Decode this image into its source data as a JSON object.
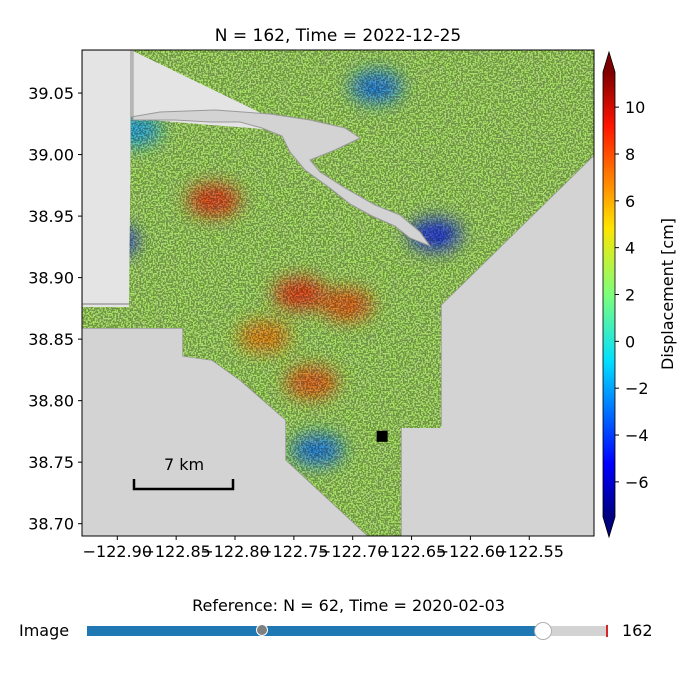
{
  "chart_data": {
    "type": "heatmap",
    "title": "N = 162, Time = 2022-12-25",
    "xlim": [
      -122.93,
      -122.495
    ],
    "ylim": [
      38.69,
      39.085
    ],
    "xticks": [
      -122.9,
      -122.85,
      -122.8,
      -122.75,
      -122.7,
      -122.65,
      -122.6,
      -122.55
    ],
    "xtick_labels": [
      "−122.90",
      "−122.85",
      "−122.80",
      "−122.75",
      "−122.70",
      "−122.65",
      "−122.60",
      "−122.55"
    ],
    "yticks": [
      38.7,
      38.75,
      38.8,
      38.85,
      38.9,
      38.95,
      39.0,
      39.05
    ],
    "ytick_labels": [
      "38.70",
      "38.75",
      "38.80",
      "38.85",
      "38.90",
      "38.95",
      "39.00",
      "39.05"
    ],
    "colorbar": {
      "label": "Displacement [cm]",
      "vmin": -7.5,
      "vmax": 11.5,
      "ticks": [
        10,
        8,
        6,
        4,
        2,
        0,
        -2,
        -4,
        -6
      ],
      "tick_labels": [
        "10",
        "8",
        "6",
        "4",
        "2",
        "0",
        "−2",
        "−4",
        "−6"
      ],
      "colormap": "jet",
      "extend": "both"
    },
    "scalebar": {
      "label": "7 km"
    },
    "marker": {
      "lon": -122.675,
      "lat": 38.771,
      "shape": "square",
      "color": "#000000"
    },
    "hotspots": [
      {
        "lon": -122.818,
        "lat": 38.963,
        "value": 9
      },
      {
        "lon": -122.745,
        "lat": 38.887,
        "value": 9
      },
      {
        "lon": -122.705,
        "lat": 38.878,
        "value": 8
      },
      {
        "lon": -122.735,
        "lat": 38.815,
        "value": 8
      },
      {
        "lon": -122.775,
        "lat": 38.852,
        "value": 7
      },
      {
        "lon": -122.905,
        "lat": 38.93,
        "value": -5
      },
      {
        "lon": -122.885,
        "lat": 39.02,
        "value": -2
      },
      {
        "lon": -122.63,
        "lat": 38.935,
        "value": -5
      },
      {
        "lon": -122.68,
        "lat": 39.055,
        "value": -3
      },
      {
        "lon": -122.73,
        "lat": 38.76,
        "value": -3
      }
    ]
  },
  "slider": {
    "label": "Image",
    "value": 162,
    "value_text": "162",
    "min": 0,
    "max": 185,
    "reference_value": 62,
    "reference_text": "Reference: N = 62, Time = 2020-02-03"
  },
  "colors": {
    "background_mask": "#d3d3d3",
    "slider_fill": "#1f77b4",
    "slider_track": "#d3d3d3",
    "slider_max_line": "#d62728"
  }
}
